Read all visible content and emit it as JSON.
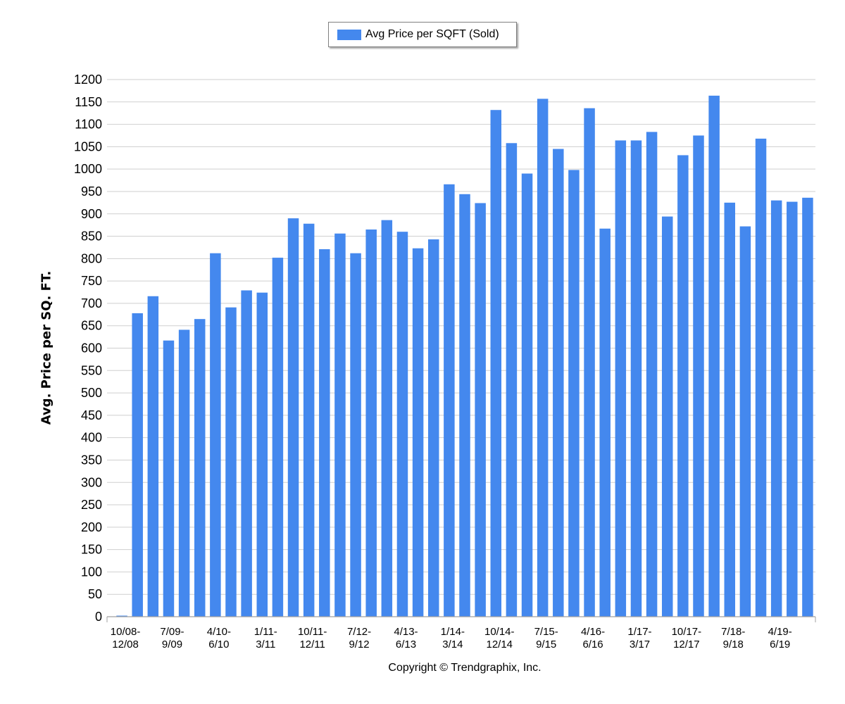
{
  "chart_data": {
    "type": "bar",
    "title": "",
    "xlabel": "",
    "ylabel": "Avg. Price per SQ. FT.",
    "ylim": [
      0,
      1200
    ],
    "y_ticks": [
      0,
      50,
      100,
      150,
      200,
      250,
      300,
      350,
      400,
      450,
      500,
      550,
      600,
      650,
      700,
      750,
      800,
      850,
      900,
      950,
      1000,
      1050,
      1100,
      1150,
      1200
    ],
    "grid": "horizontal",
    "legend_position": "top-center",
    "bar_color": "#4488ee",
    "x_tick_labels": [
      {
        "line1": "10/08-",
        "line2": "12/08",
        "category_index": 0
      },
      {
        "line1": "7/09-",
        "line2": "9/09",
        "category_index": 3
      },
      {
        "line1": "4/10-",
        "line2": "6/10",
        "category_index": 6
      },
      {
        "line1": "1/11-",
        "line2": "3/11",
        "category_index": 9
      },
      {
        "line1": "10/11-",
        "line2": "12/11",
        "category_index": 12
      },
      {
        "line1": "7/12-",
        "line2": "9/12",
        "category_index": 15
      },
      {
        "line1": "4/13-",
        "line2": "6/13",
        "category_index": 18
      },
      {
        "line1": "1/14-",
        "line2": "3/14",
        "category_index": 21
      },
      {
        "line1": "10/14-",
        "line2": "12/14",
        "category_index": 24
      },
      {
        "line1": "7/15-",
        "line2": "9/15",
        "category_index": 27
      },
      {
        "line1": "4/16-",
        "line2": "6/16",
        "category_index": 30
      },
      {
        "line1": "1/17-",
        "line2": "3/17",
        "category_index": 33
      },
      {
        "line1": "10/17-",
        "line2": "12/17",
        "category_index": 36
      },
      {
        "line1": "7/18-",
        "line2": "9/18",
        "category_index": 39
      },
      {
        "line1": "4/19-",
        "line2": "6/19",
        "category_index": 42
      }
    ],
    "series": [
      {
        "name": "Avg Price per SQFT (Sold)",
        "values": [
          0,
          678,
          716,
          617,
          641,
          665,
          812,
          691,
          729,
          724,
          802,
          890,
          878,
          821,
          856,
          812,
          865,
          886,
          860,
          823,
          843,
          966,
          944,
          924,
          1132,
          1058,
          990,
          1157,
          1045,
          998,
          1136,
          867,
          1064,
          1064,
          1083,
          894,
          1031,
          1075,
          1164,
          925,
          872,
          1068,
          930,
          927,
          936
        ]
      }
    ]
  },
  "legend": {
    "label": "Avg Price per SQFT (Sold)"
  },
  "footer": {
    "copyright": "Copyright © Trendgraphix, Inc."
  }
}
